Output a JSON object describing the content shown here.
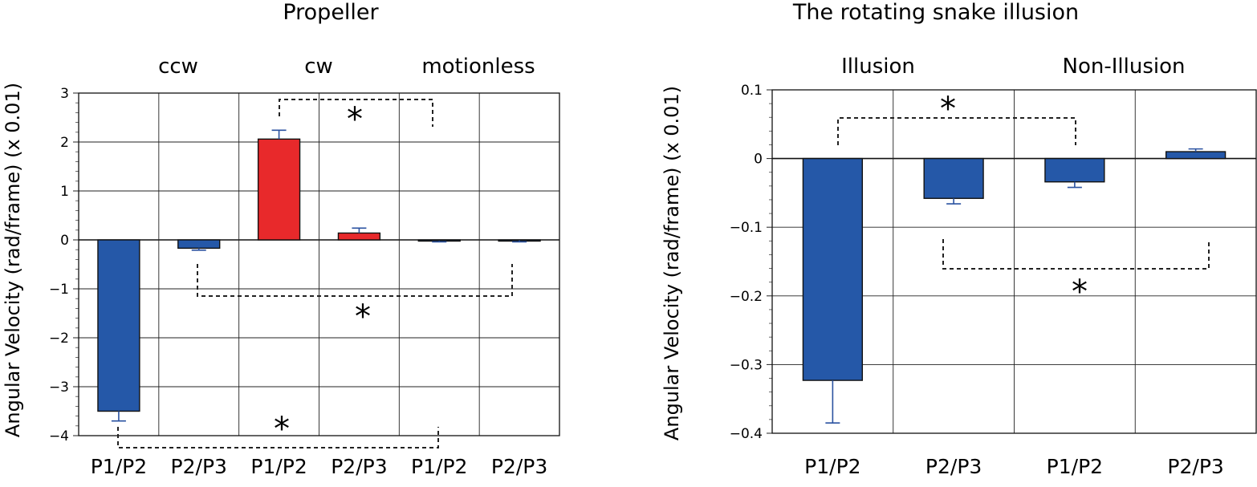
{
  "chart_data": [
    {
      "type": "bar",
      "title": "Propeller",
      "ylabel": "Angular Velocity (rad/frame) (x 0.01)",
      "xlabel": "",
      "ylim": [
        -4,
        3
      ],
      "yticks": [
        3,
        2,
        1,
        0,
        -1,
        -2,
        -3,
        -4
      ],
      "ytick_labels": [
        "3",
        "2",
        "1",
        "0",
        "−1",
        "−2",
        "−3",
        "−4"
      ],
      "groups": [
        "ccw",
        "cw",
        "motionless"
      ],
      "categories": [
        "P1/P2",
        "P2/P3",
        "P1/P2",
        "P2/P3",
        "P1/P2",
        "P2/P3"
      ],
      "values": [
        -3.5,
        -0.17,
        2.06,
        0.14,
        -0.02,
        -0.01
      ],
      "errors": [
        0.2,
        0.04,
        0.18,
        0.1,
        0.02,
        0.03
      ],
      "bar_colors": [
        "#2558a8",
        "#2558a8",
        "#e8292b",
        "#e8292b",
        "#2558a8",
        "#2558a8"
      ],
      "grid": true,
      "annotations": [
        "*",
        "*",
        "*"
      ]
    },
    {
      "type": "bar",
      "title": "The rotating snake illusion",
      "ylabel": "Angular Velocity (rad/frame) (x 0.01)",
      "xlabel": "",
      "ylim": [
        -0.4,
        0.1
      ],
      "yticks": [
        0.1,
        0,
        -0.1,
        -0.2,
        -0.3,
        -0.4
      ],
      "ytick_labels": [
        "0.1",
        "0",
        "−0.1",
        "−0.2",
        "−0.3",
        "−0.4"
      ],
      "groups": [
        "Illusion",
        "Non-Illusion"
      ],
      "categories": [
        "P1/P2",
        "P2/P3",
        "P1/P2",
        "P2/P3"
      ],
      "values": [
        -0.323,
        -0.058,
        -0.034,
        0.01
      ],
      "errors": [
        0.062,
        0.008,
        0.008,
        0.004
      ],
      "bar_colors": [
        "#2558a8",
        "#2558a8",
        "#2558a8",
        "#2558a8"
      ],
      "grid": true,
      "annotations": [
        "*",
        "*"
      ]
    }
  ]
}
